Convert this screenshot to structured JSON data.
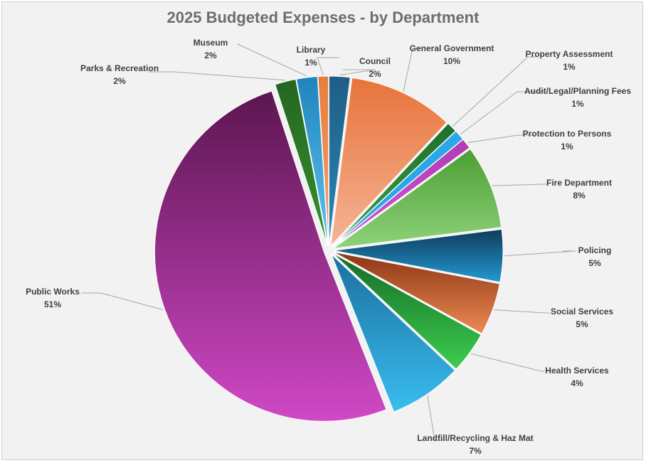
{
  "chart_data": {
    "type": "pie",
    "title": "2025 Budgeted Expenses - by Department",
    "slices": [
      {
        "label": "Council",
        "value": 2,
        "pct_label": "2%",
        "colors": [
          "#1f5e86",
          "#2b86b8"
        ]
      },
      {
        "label": "General Government",
        "value": 10,
        "pct_label": "10%",
        "colors": [
          "#e8733a",
          "#f5b496"
        ]
      },
      {
        "label": "Property Assessment",
        "value": 1,
        "pct_label": "1%",
        "colors": [
          "#1f6e2d",
          "#3ca24b"
        ]
      },
      {
        "label": "Audit/Legal/Planning Fees",
        "value": 1,
        "pct_label": "1%",
        "colors": [
          "#2aa7e6",
          "#2aa7e6"
        ]
      },
      {
        "label": "Protection to Persons",
        "value": 1,
        "pct_label": "1%",
        "colors": [
          "#b23bb5",
          "#d05ad3"
        ]
      },
      {
        "label": "Fire Department",
        "value": 8,
        "pct_label": "8%",
        "colors": [
          "#4c9e34",
          "#8fd27a"
        ]
      },
      {
        "label": "Policing",
        "value": 5,
        "pct_label": "5%",
        "colors": [
          "#0e3c5a",
          "#2499d3"
        ]
      },
      {
        "label": "Social Services",
        "value": 5,
        "pct_label": "5%",
        "colors": [
          "#8c3415",
          "#ec8a52"
        ]
      },
      {
        "label": "Health Services",
        "value": 4,
        "pct_label": "4%",
        "colors": [
          "#166a27",
          "#3ccd4e"
        ]
      },
      {
        "label": "Landfill/Recycling & Haz Mat",
        "value": 7,
        "pct_label": "7%",
        "colors": [
          "#1b6f9f",
          "#39bdef"
        ]
      },
      {
        "label": "Public Works",
        "value": 51,
        "pct_label": "51%",
        "colors": [
          "#5c1651",
          "#d048c6"
        ]
      },
      {
        "label": "Parks & Recreation",
        "value": 2,
        "pct_label": "2%",
        "colors": [
          "#246622",
          "#36912f"
        ]
      },
      {
        "label": "Museum",
        "value": 2,
        "pct_label": "2%",
        "colors": [
          "#1f84bd",
          "#5ec4ef"
        ]
      },
      {
        "label": "Library",
        "value": 1,
        "pct_label": "1%",
        "colors": [
          "#e87d3d",
          "#f0a270"
        ]
      }
    ]
  }
}
